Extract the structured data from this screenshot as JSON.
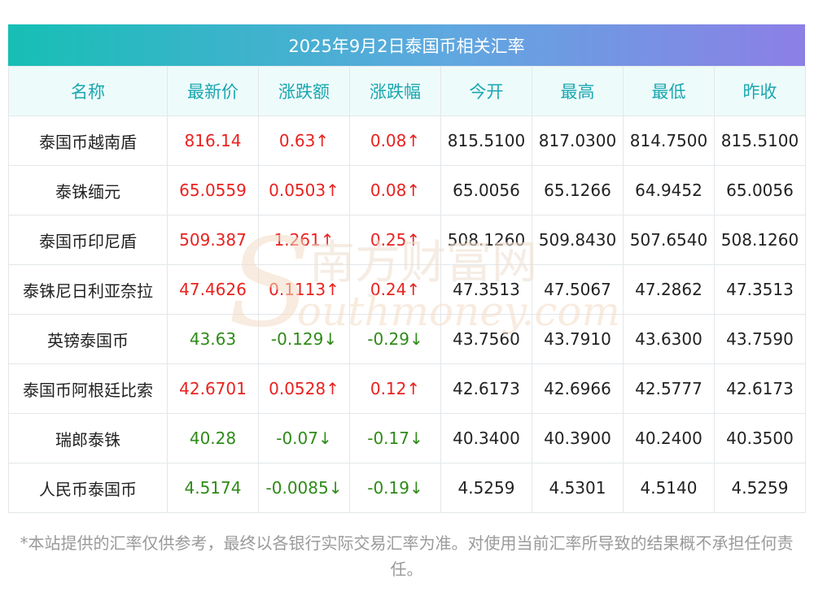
{
  "title": "2025年9月2日泰国币相关汇率",
  "headers": [
    "名称",
    "最新价",
    "涨跌额",
    "涨跌幅",
    "今开",
    "最高",
    "最低",
    "昨收"
  ],
  "rows": [
    {
      "name": "泰国币越南盾",
      "latest": "816.14",
      "change": "0.63↑",
      "pct": "0.08↑",
      "open": "815.5100",
      "high": "817.0300",
      "low": "814.7500",
      "prev": "815.5100",
      "dir": "up"
    },
    {
      "name": "泰铢缅元",
      "latest": "65.0559",
      "change": "0.0503↑",
      "pct": "0.08↑",
      "open": "65.0056",
      "high": "65.1266",
      "low": "64.9452",
      "prev": "65.0056",
      "dir": "up"
    },
    {
      "name": "泰国币印尼盾",
      "latest": "509.387",
      "change": "1.261↑",
      "pct": "0.25↑",
      "open": "508.1260",
      "high": "509.8430",
      "low": "507.6540",
      "prev": "508.1260",
      "dir": "up"
    },
    {
      "name": "泰铢尼日利亚奈拉",
      "latest": "47.4626",
      "change": "0.1113↑",
      "pct": "0.24↑",
      "open": "47.3513",
      "high": "47.5067",
      "low": "47.2862",
      "prev": "47.3513",
      "dir": "up"
    },
    {
      "name": "英镑泰国币",
      "latest": "43.63",
      "change": "-0.129↓",
      "pct": "-0.29↓",
      "open": "43.7560",
      "high": "43.7910",
      "low": "43.6300",
      "prev": "43.7590",
      "dir": "down"
    },
    {
      "name": "泰国币阿根廷比索",
      "latest": "42.6701",
      "change": "0.0528↑",
      "pct": "0.12↑",
      "open": "42.6173",
      "high": "42.6966",
      "low": "42.5777",
      "prev": "42.6173",
      "dir": "up"
    },
    {
      "name": "瑞郎泰铢",
      "latest": "40.28",
      "change": "-0.07↓",
      "pct": "-0.17↓",
      "open": "40.3400",
      "high": "40.3900",
      "low": "40.2400",
      "prev": "40.3500",
      "dir": "down"
    },
    {
      "name": "人民币泰国币",
      "latest": "4.5174",
      "change": "-0.0085↓",
      "pct": "-0.19↓",
      "open": "4.5259",
      "high": "4.5301",
      "low": "4.5140",
      "prev": "4.5259",
      "dir": "down"
    }
  ],
  "note": "*本站提供的汇率仅供参考，最终以各银行实际交易汇率为准。对使用当前汇率所导致的结果概不承担任何责任。",
  "watermark": {
    "cn": "南方财富网",
    "en": "outhmoney.com",
    "s": "S"
  },
  "colors": {
    "up": "#e8221f",
    "down": "#2e8b18",
    "header_text": "#1aa7b0"
  }
}
